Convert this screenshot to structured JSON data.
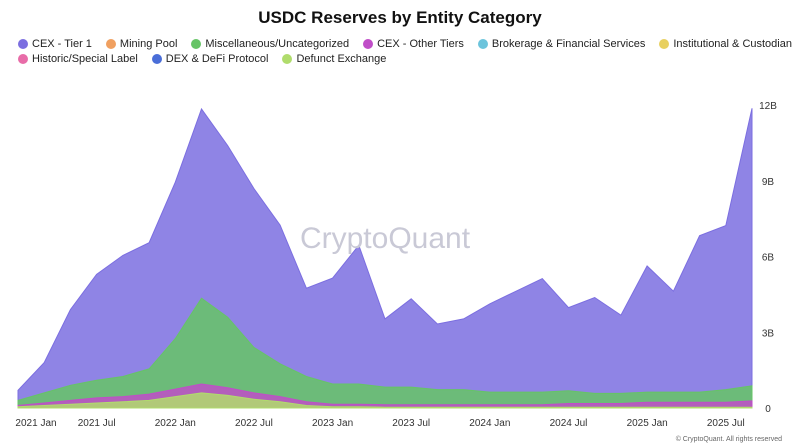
{
  "chart_data": {
    "type": "area",
    "title": "USDC Reserves by Entity Category",
    "watermark": "CryptoQuant",
    "credit": "© CryptoQuant. All rights reserved",
    "legend": [
      {
        "name": "CEX - Tier 1",
        "color": "#7b6ee0"
      },
      {
        "name": "Mining Pool",
        "color": "#f0a060"
      },
      {
        "name": "Miscellaneous/Uncategorized",
        "color": "#66c466"
      },
      {
        "name": "CEX - Other Tiers",
        "color": "#c04ec8"
      },
      {
        "name": "Brokerage & Financial Services",
        "color": "#6cc4dc"
      },
      {
        "name": "Institutional & Custodian",
        "color": "#e8d060"
      },
      {
        "name": "Historic/Special Label",
        "color": "#e86ca8"
      },
      {
        "name": "DEX & DeFi Protocol",
        "color": "#4a6ed8"
      },
      {
        "name": "Defunct Exchange",
        "color": "#b0dc6c"
      }
    ],
    "x_ticks": [
      "2021 Jan",
      "2021 Jul",
      "2022 Jan",
      "2022 Jul",
      "2023 Jan",
      "2023 Jul",
      "2024 Jan",
      "2024 Jul",
      "2025 Jan",
      "2025 Jul"
    ],
    "y_ticks": [
      "0",
      "3B",
      "6B",
      "9B",
      "12B"
    ],
    "ylim": [
      0,
      13
    ],
    "x": [
      "2021-01",
      "2021-03",
      "2021-05",
      "2021-07",
      "2021-09",
      "2021-11",
      "2022-01",
      "2022-03",
      "2022-05",
      "2022-07",
      "2022-09",
      "2022-11",
      "2023-01",
      "2023-03",
      "2023-05",
      "2023-07",
      "2023-09",
      "2023-11",
      "2024-01",
      "2024-03",
      "2024-05",
      "2024-07",
      "2024-09",
      "2024-11",
      "2025-01",
      "2025-03",
      "2025-05",
      "2025-07",
      "2025-08"
    ],
    "series": [
      {
        "name": "Defunct Exchange",
        "color": "#b0dc6c",
        "values": [
          0.05,
          0.1,
          0.15,
          0.2,
          0.25,
          0.3,
          0.45,
          0.6,
          0.5,
          0.35,
          0.25,
          0.1,
          0.05,
          0.05,
          0.03,
          0.03,
          0.03,
          0.03,
          0.03,
          0.03,
          0.03,
          0.03,
          0.03,
          0.03,
          0.03,
          0.03,
          0.03,
          0.03,
          0.03
        ]
      },
      {
        "name": "CEX - Other Tiers",
        "color": "#c04ec8",
        "values": [
          0.05,
          0.1,
          0.15,
          0.2,
          0.2,
          0.25,
          0.3,
          0.35,
          0.3,
          0.25,
          0.2,
          0.15,
          0.1,
          0.1,
          0.1,
          0.1,
          0.1,
          0.1,
          0.1,
          0.1,
          0.1,
          0.15,
          0.15,
          0.15,
          0.2,
          0.2,
          0.2,
          0.2,
          0.25
        ]
      },
      {
        "name": "Miscellaneous/Uncategorized",
        "color": "#66c466",
        "values": [
          0.2,
          0.4,
          0.6,
          0.7,
          0.8,
          1.0,
          2.0,
          3.4,
          2.8,
          1.8,
          1.3,
          1.0,
          0.8,
          0.8,
          0.7,
          0.7,
          0.6,
          0.6,
          0.5,
          0.5,
          0.5,
          0.5,
          0.4,
          0.4,
          0.4,
          0.4,
          0.4,
          0.5,
          0.6
        ]
      },
      {
        "name": "CEX - Tier 1",
        "color": "#7b6ee0",
        "values": [
          0.4,
          1.2,
          3.0,
          4.2,
          4.8,
          5.0,
          6.2,
          7.5,
          6.8,
          6.3,
          5.5,
          3.5,
          4.2,
          5.5,
          2.7,
          3.5,
          2.6,
          2.8,
          3.5,
          4.0,
          4.5,
          3.3,
          3.8,
          3.1,
          5.0,
          4.0,
          6.2,
          6.5,
          11.0
        ]
      }
    ]
  }
}
